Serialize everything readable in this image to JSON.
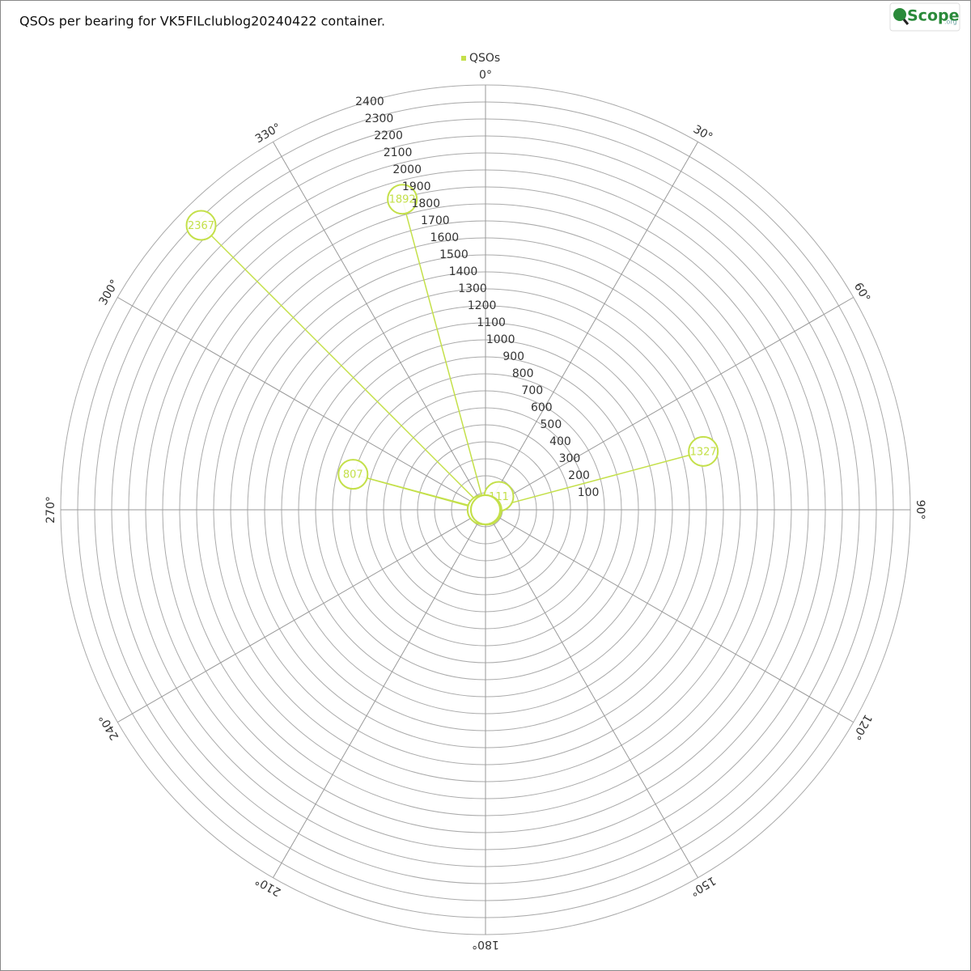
{
  "chart_data": {
    "type": "polar-area",
    "title": "QSOs per bearing for VK5FILclublog20240422 container.",
    "logo": "Scope",
    "logo_suffix": ".org",
    "categories": [
      0,
      15,
      30,
      45,
      60,
      75,
      90,
      105,
      120,
      135,
      150,
      165,
      180,
      195,
      210,
      225,
      240,
      255,
      270,
      285,
      300,
      315,
      330,
      345
    ],
    "series": [
      {
        "name": "QSOs",
        "color": "#c4e04a",
        "values": [
          0,
          0,
          0,
          111,
          0,
          1327,
          0,
          9,
          0,
          0,
          0,
          0,
          0,
          0,
          0,
          0,
          0,
          0,
          20,
          807,
          0,
          2367,
          0,
          1892
        ]
      }
    ],
    "angle_ticks": [
      {
        "value": 0,
        "label": "0°"
      },
      {
        "value": 30,
        "label": "30°"
      },
      {
        "value": 60,
        "label": "60°"
      },
      {
        "value": 90,
        "label": "90°"
      },
      {
        "value": 120,
        "label": "120°"
      },
      {
        "value": 150,
        "label": "150°"
      },
      {
        "value": 180,
        "label": "180°"
      },
      {
        "value": 210,
        "label": "210°"
      },
      {
        "value": 240,
        "label": "240°"
      },
      {
        "value": 270,
        "label": "270°"
      },
      {
        "value": 300,
        "label": "300°"
      },
      {
        "value": 330,
        "label": "330°"
      }
    ],
    "ylim": [
      0,
      2500
    ],
    "yticks": [
      100,
      200,
      300,
      400,
      500,
      600,
      700,
      800,
      900,
      1000,
      1100,
      1200,
      1300,
      1400,
      1500,
      1600,
      1700,
      1800,
      1900,
      2000,
      2100,
      2200,
      2300,
      2400
    ],
    "legend": "top"
  }
}
